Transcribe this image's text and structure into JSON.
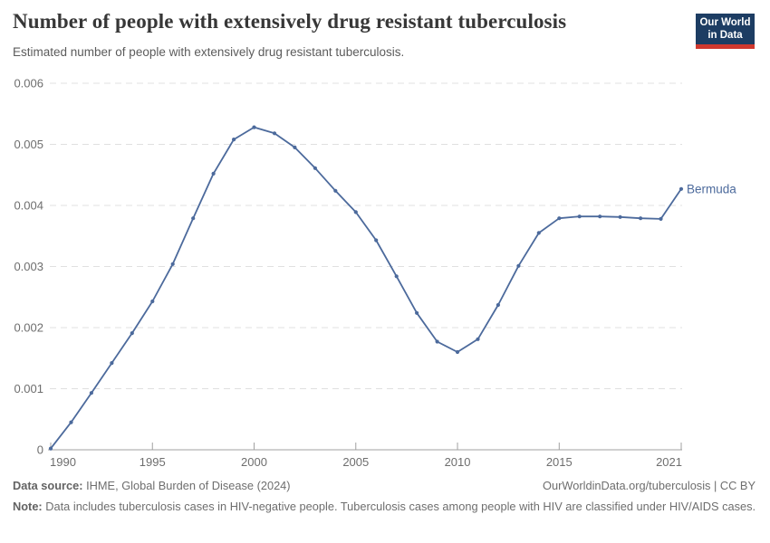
{
  "header": {
    "title": "Number of people with extensively drug resistant tuberculosis",
    "subtitle": "Estimated number of people with extensively drug resistant tuberculosis.",
    "logo": {
      "line1": "Our World",
      "line2": "in Data",
      "bg_color": "#1d3d63",
      "bar_color": "#d0382e"
    }
  },
  "chart_data": {
    "type": "line",
    "title": "Number of people with extensively drug resistant tuberculosis",
    "subtitle": "Estimated number of people with extensively drug resistant tuberculosis.",
    "xlabel": "",
    "ylabel": "",
    "xlim": [
      1990,
      2021
    ],
    "ylim": [
      0,
      0.006
    ],
    "x_ticks": [
      1990,
      1995,
      2000,
      2005,
      2010,
      2015,
      2021
    ],
    "y_ticks": [
      0,
      0.001,
      0.002,
      0.003,
      0.004,
      0.005,
      0.006
    ],
    "y_tick_labels": [
      "0",
      "0.001",
      "0.002",
      "0.003",
      "0.004",
      "0.005",
      "0.006"
    ],
    "grid": true,
    "legend_position": "inline-right-of-last-point",
    "series": [
      {
        "name": "Bermuda",
        "color": "#4c6a9c",
        "x_start": 1990,
        "x": [
          1990,
          1991,
          1992,
          1993,
          1994,
          1995,
          1996,
          1997,
          1998,
          1999,
          2000,
          2001,
          2002,
          2003,
          2004,
          2005,
          2006,
          2007,
          2008,
          2009,
          2010,
          2011,
          2012,
          2013,
          2014,
          2015,
          2016,
          2017,
          2018,
          2019,
          2020,
          2021
        ],
        "values": [
          2e-05,
          0.00045,
          0.00093,
          0.00142,
          0.00191,
          0.00243,
          0.00304,
          0.00379,
          0.00452,
          0.00508,
          0.00528,
          0.00518,
          0.00495,
          0.00461,
          0.00424,
          0.00389,
          0.00343,
          0.00284,
          0.00224,
          0.00177,
          0.0016,
          0.00181,
          0.00237,
          0.00301,
          0.00355,
          0.00379,
          0.00382,
          0.00382,
          0.00381,
          0.00379,
          0.00378,
          0.00427
        ]
      }
    ],
    "colors": {
      "line": "#4c6a9c",
      "grid": "#e0e0e0",
      "axis": "#a1a1a1",
      "tick_text": "#6e6e6e"
    }
  },
  "footer": {
    "datasource_label": "Data source:",
    "datasource_text": " IHME, Global Burden of Disease (2024)",
    "link": "OurWorldinData.org/tuberculosis | CC BY",
    "note_label": "Note:",
    "note_text": " Data includes tuberculosis cases in HIV-negative people. Tuberculosis cases among people with HIV are classified under HIV/AIDS cases."
  }
}
